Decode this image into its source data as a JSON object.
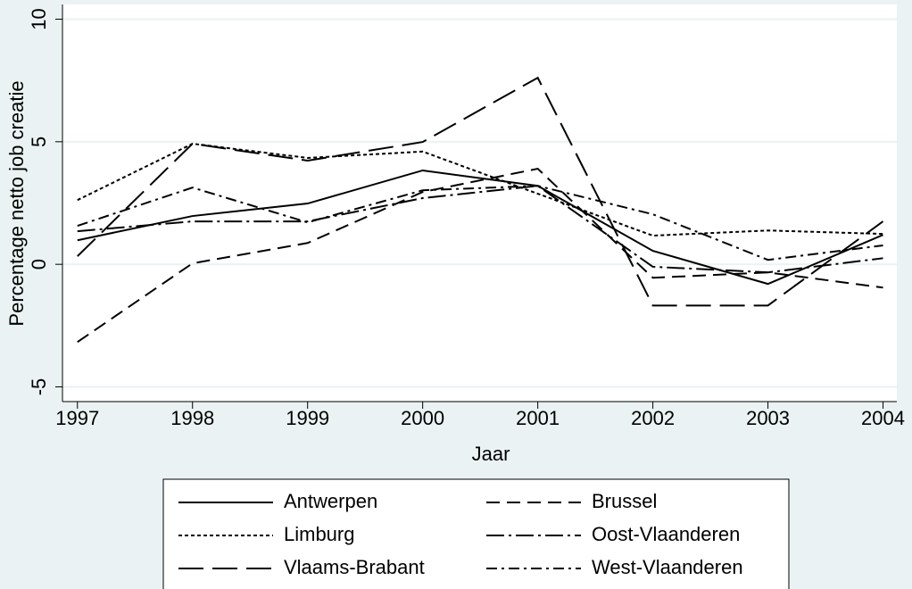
{
  "chart_data": {
    "type": "line",
    "x_label": "Jaar",
    "y_label": "Percentage netto job creatie",
    "x": [
      1997,
      1998,
      1999,
      2000,
      2001,
      2002,
      2003,
      2004
    ],
    "xlim": [
      1996.87,
      2004.12
    ],
    "xticks": [
      1997,
      1998,
      1999,
      2000,
      2001,
      2002,
      2003,
      2004
    ],
    "ylim": [
      -5.6,
      10.6
    ],
    "yticks": [
      -5,
      0,
      5,
      10
    ],
    "grid": true,
    "legend": "bottom",
    "series": [
      {
        "name": "Antwerpen",
        "color": "#000000",
        "dash": "none",
        "values": [
          0.98,
          1.97,
          2.48,
          3.83,
          3.2,
          0.55,
          -0.8,
          1.2
        ]
      },
      {
        "name": "Brussel",
        "color": "#000000",
        "dash": "15,8",
        "values": [
          -3.17,
          0.04,
          0.87,
          2.95,
          3.9,
          -0.55,
          -0.33,
          -0.95
        ]
      },
      {
        "name": "Limburg",
        "color": "#000000",
        "dash": "4,3",
        "values": [
          2.62,
          4.92,
          4.34,
          4.6,
          2.88,
          1.17,
          1.38,
          1.24
        ]
      },
      {
        "name": "Oost-Vlaanderen",
        "color": "#000000",
        "dash": "20,5,3,5",
        "values": [
          1.35,
          1.75,
          1.75,
          2.7,
          3.2,
          -0.1,
          -0.33,
          0.25
        ]
      },
      {
        "name": "Vlaams-Brabant",
        "color": "#000000",
        "dash": "28,10",
        "values": [
          0.33,
          4.92,
          4.23,
          4.99,
          7.61,
          -1.68,
          -1.68,
          1.75
        ]
      },
      {
        "name": "West-Vlaanderen",
        "color": "#000000",
        "dash": "12,5,3,5",
        "values": [
          1.57,
          3.13,
          1.71,
          3.02,
          3.2,
          2.04,
          0.18,
          0.77
        ]
      }
    ]
  }
}
